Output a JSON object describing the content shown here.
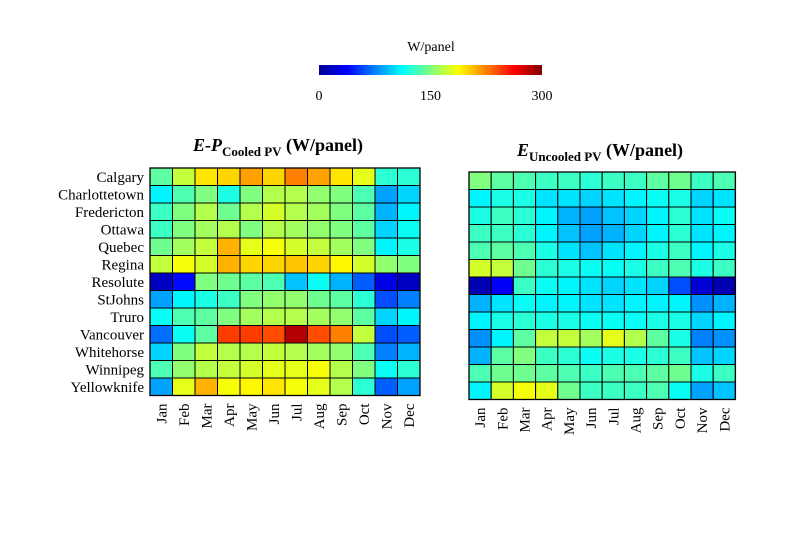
{
  "colorbar": {
    "label": "W/panel",
    "min": 0,
    "max": 300,
    "tick_labels": [
      "0",
      "150",
      "300"
    ],
    "tick_values": [
      0,
      150,
      300
    ],
    "colormap": "jet"
  },
  "chart_data": [
    {
      "type": "heatmap",
      "title_italic": "E-P",
      "title_subscript": "Cooled PV",
      "title_unit": " (W/panel)",
      "rows": [
        "Calgary",
        "Charlottetown",
        "Fredericton",
        "Ottawa",
        "Quebec",
        "Regina",
        "Resolute",
        "StJohns",
        "Truro",
        "Vancouver",
        "Whitehorse",
        "Winnipeg",
        "Yellowknife"
      ],
      "columns": [
        "Jan",
        "Feb",
        "Mar",
        "Apr",
        "May",
        "Jun",
        "Jul",
        "Aug",
        "Sep",
        "Oct",
        "Nov",
        "Dec"
      ],
      "values": [
        [
          140,
          170,
          195,
          200,
          215,
          200,
          225,
          215,
          195,
          180,
          125,
          125
        ],
        [
          110,
          135,
          150,
          120,
          150,
          165,
          165,
          155,
          150,
          135,
          85,
          100
        ],
        [
          130,
          150,
          165,
          145,
          165,
          175,
          165,
          160,
          150,
          140,
          90,
          110
        ],
        [
          130,
          150,
          160,
          165,
          150,
          165,
          160,
          155,
          150,
          140,
          100,
          115
        ],
        [
          145,
          160,
          170,
          210,
          180,
          185,
          175,
          170,
          160,
          150,
          110,
          120
        ],
        [
          170,
          185,
          175,
          210,
          200,
          200,
          205,
          200,
          190,
          175,
          155,
          150
        ],
        [
          20,
          40,
          150,
          145,
          140,
          135,
          95,
          115,
          90,
          65,
          30,
          20
        ],
        [
          85,
          110,
          120,
          130,
          150,
          155,
          155,
          145,
          140,
          125,
          60,
          75
        ],
        [
          115,
          135,
          140,
          150,
          160,
          165,
          165,
          160,
          155,
          140,
          100,
          110
        ],
        [
          70,
          115,
          140,
          245,
          245,
          240,
          285,
          240,
          225,
          170,
          60,
          65
        ],
        [
          100,
          150,
          170,
          165,
          165,
          170,
          165,
          160,
          155,
          135,
          75,
          90
        ],
        [
          135,
          155,
          165,
          170,
          175,
          180,
          180,
          185,
          165,
          150,
          115,
          125
        ],
        [
          85,
          180,
          210,
          185,
          190,
          195,
          185,
          180,
          165,
          125,
          65,
          85
        ]
      ]
    },
    {
      "type": "heatmap",
      "title_italic": "E",
      "title_subscript": "Uncooled PV",
      "title_unit": " (W/panel)",
      "rows": [
        "Calgary",
        "Charlottetown",
        "Fredericton",
        "Ottawa",
        "Quebec",
        "Regina",
        "Resolute",
        "StJohns",
        "Truro",
        "Vancouver",
        "Whitehorse",
        "Winnipeg",
        "Yellowknife"
      ],
      "columns": [
        "Jan",
        "Feb",
        "Mar",
        "Apr",
        "May",
        "Jun",
        "Jul",
        "Aug",
        "Sep",
        "Oct",
        "Nov",
        "Dec"
      ],
      "values": [
        [
          150,
          140,
          135,
          130,
          130,
          125,
          130,
          130,
          140,
          145,
          130,
          135
        ],
        [
          110,
          120,
          120,
          105,
          105,
          100,
          105,
          110,
          115,
          120,
          100,
          105
        ],
        [
          120,
          130,
          125,
          110,
          90,
          85,
          95,
          100,
          110,
          125,
          105,
          115
        ],
        [
          130,
          130,
          125,
          110,
          95,
          85,
          90,
          100,
          110,
          125,
          105,
          110
        ],
        [
          135,
          140,
          135,
          120,
          105,
          95,
          105,
          110,
          120,
          130,
          110,
          120
        ],
        [
          175,
          170,
          145,
          125,
          120,
          115,
          115,
          120,
          130,
          135,
          120,
          130
        ],
        [
          15,
          35,
          130,
          115,
          110,
          105,
          100,
          105,
          100,
          60,
          25,
          15
        ],
        [
          90,
          105,
          115,
          110,
          110,
          105,
          105,
          110,
          110,
          110,
          80,
          90
        ],
        [
          110,
          120,
          125,
          120,
          120,
          115,
          115,
          115,
          120,
          120,
          100,
          110
        ],
        [
          80,
          110,
          140,
          170,
          170,
          160,
          180,
          165,
          140,
          120,
          75,
          80
        ],
        [
          90,
          140,
          150,
          130,
          125,
          115,
          120,
          120,
          125,
          130,
          95,
          100
        ],
        [
          135,
          145,
          145,
          140,
          135,
          130,
          135,
          135,
          140,
          145,
          120,
          130
        ],
        [
          110,
          175,
          185,
          180,
          145,
          130,
          130,
          130,
          135,
          115,
          85,
          95
        ]
      ]
    }
  ]
}
